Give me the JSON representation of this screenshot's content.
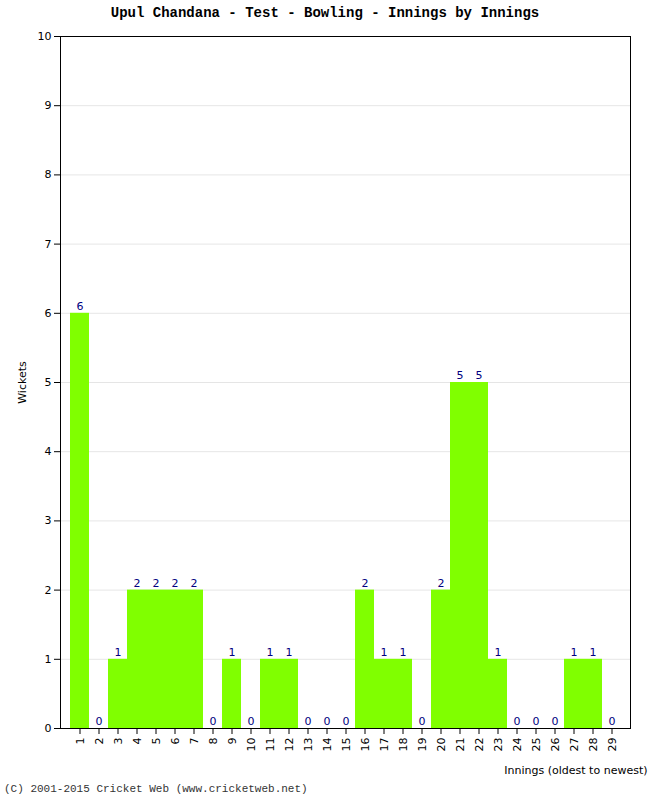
{
  "chart_data": {
    "type": "bar",
    "title": "Upul Chandana - Test - Bowling - Innings by Innings",
    "x_label": "Innings (oldest to newest)",
    "y_label": "Wickets",
    "footer": "(C) 2001-2015 Cricket Web (www.cricketweb.net)",
    "categories": [
      "1",
      "2",
      "3",
      "4",
      "5",
      "6",
      "7",
      "8",
      "9",
      "10",
      "11",
      "12",
      "13",
      "14",
      "15",
      "16",
      "17",
      "18",
      "19",
      "20",
      "21",
      "22",
      "23",
      "24",
      "25",
      "26",
      "27",
      "28",
      "29"
    ],
    "values": [
      6,
      0,
      1,
      2,
      2,
      2,
      2,
      0,
      1,
      0,
      1,
      1,
      0,
      0,
      0,
      2,
      1,
      1,
      0,
      2,
      5,
      5,
      1,
      0,
      0,
      0,
      1,
      1,
      0
    ],
    "color": "#80ff00",
    "ylim": [
      0,
      10
    ],
    "yticks": [
      0,
      1,
      2,
      3,
      4,
      5,
      6,
      7,
      8,
      9,
      10
    ],
    "grid": true,
    "data_labels": true
  }
}
